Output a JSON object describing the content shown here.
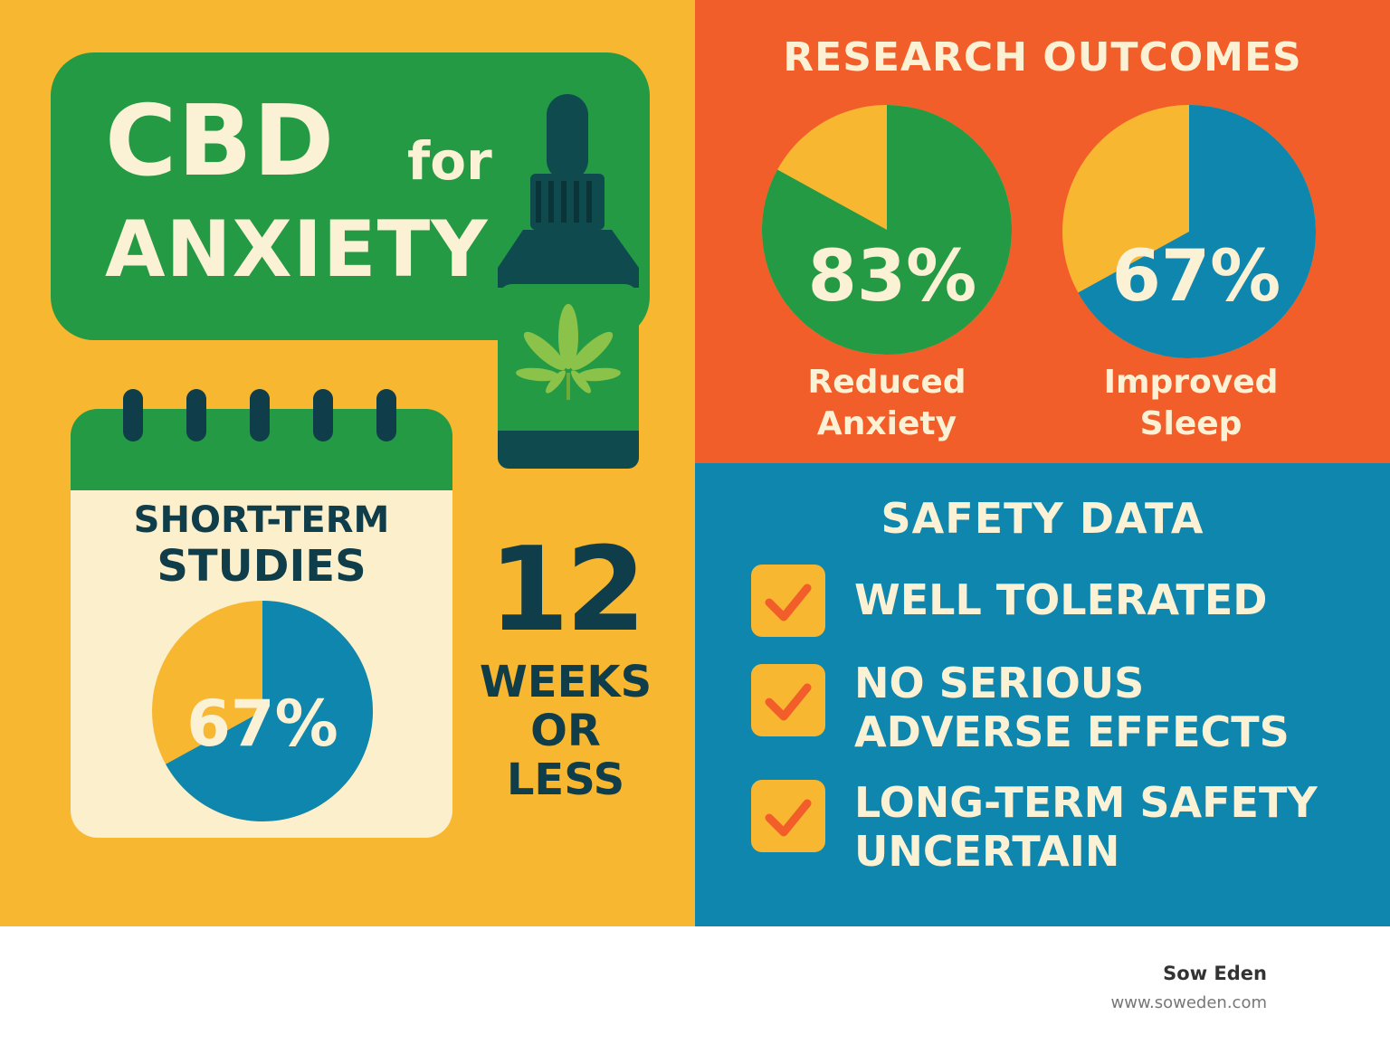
{
  "colors": {
    "yellow": "#F8B731",
    "green": "#239A43",
    "orange": "#F25E2A",
    "blue": "#0E86AD",
    "dark": "#0F3D4A",
    "cream": "#FBF2D6",
    "leaf": "#8BC34A"
  },
  "title": {
    "line1_big": "CBD",
    "line1_small": "for",
    "line2": "ANXIETY"
  },
  "short_term": {
    "heading_line1": "SHORT-TERM",
    "heading_line2": "STUDIES",
    "percent_label": "67%",
    "percent_value": 67
  },
  "duration": {
    "number": "12",
    "line1": "WEEKS",
    "line2": "OR",
    "line3": "LESS"
  },
  "research": {
    "title": "RESEARCH OUTCOMES",
    "outcomes": [
      {
        "percent_label": "83%",
        "percent_value": 83,
        "caption_line1": "Reduced",
        "caption_line2": "Anxiety"
      },
      {
        "percent_label": "67%",
        "percent_value": 67,
        "caption_line1": "Improved",
        "caption_line2": "Sleep"
      }
    ]
  },
  "safety": {
    "title": "SAFETY DATA",
    "items": [
      {
        "line1": "WELL TOLERATED",
        "line2": ""
      },
      {
        "line1": "NO SERIOUS",
        "line2": "ADVERSE EFFECTS"
      },
      {
        "line1": "LONG-TERM SAFETY",
        "line2": "UNCERTAIN"
      }
    ]
  },
  "brand": {
    "name": "Sow Eden",
    "url": "www.soweden.com"
  }
}
